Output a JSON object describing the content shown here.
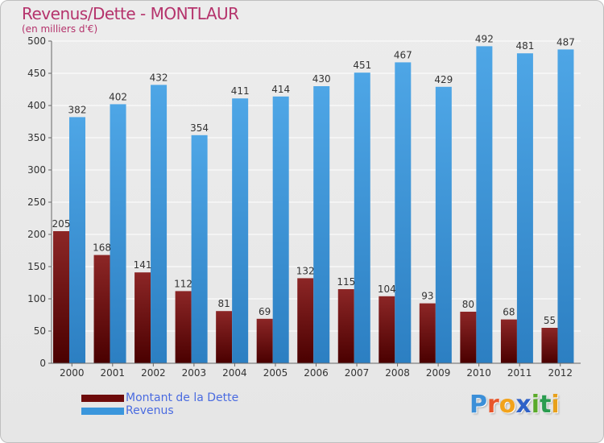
{
  "header": {
    "title": "Revenus/Dette - MONTLAUR",
    "subtitle": "(en milliers d'€)"
  },
  "legend": {
    "items": [
      {
        "label": "Montant de la Dette",
        "color": "#6e0b0b"
      },
      {
        "label": "Revenus",
        "color": "#3a96dc"
      }
    ]
  },
  "logo": {
    "letters": [
      {
        "char": "P",
        "color": "#3b8fd8"
      },
      {
        "char": "r",
        "color": "#e8552b"
      },
      {
        "char": "o",
        "color": "#f2a31b"
      },
      {
        "char": "x",
        "color": "#2f62c8"
      },
      {
        "char": "i",
        "color": "#5aaa2a"
      },
      {
        "char": "t",
        "color": "#2a9c4f"
      },
      {
        "char": "i",
        "color": "#e8a11b"
      }
    ]
  },
  "chart_data": {
    "type": "bar",
    "categories": [
      "2000",
      "2001",
      "2002",
      "2003",
      "2004",
      "2005",
      "2006",
      "2007",
      "2008",
      "2009",
      "2010",
      "2011",
      "2012"
    ],
    "series": [
      {
        "name": "Montant de la Dette",
        "values": [
          205,
          168,
          141,
          112,
          81,
          69,
          132,
          115,
          104,
          93,
          80,
          68,
          55
        ],
        "color": "#7a1414"
      },
      {
        "name": "Revenus",
        "values": [
          382,
          402,
          432,
          354,
          411,
          414,
          430,
          451,
          467,
          429,
          492,
          481,
          487
        ],
        "color": "#3a96dc"
      }
    ],
    "title": "Revenus/Dette - MONTLAUR",
    "subtitle": "(en milliers d'€)",
    "ylim": [
      0,
      500
    ],
    "yticks": [
      0,
      50,
      100,
      150,
      200,
      250,
      300,
      350,
      400,
      450,
      500
    ],
    "grid": true,
    "legend_position": "bottom-left"
  }
}
